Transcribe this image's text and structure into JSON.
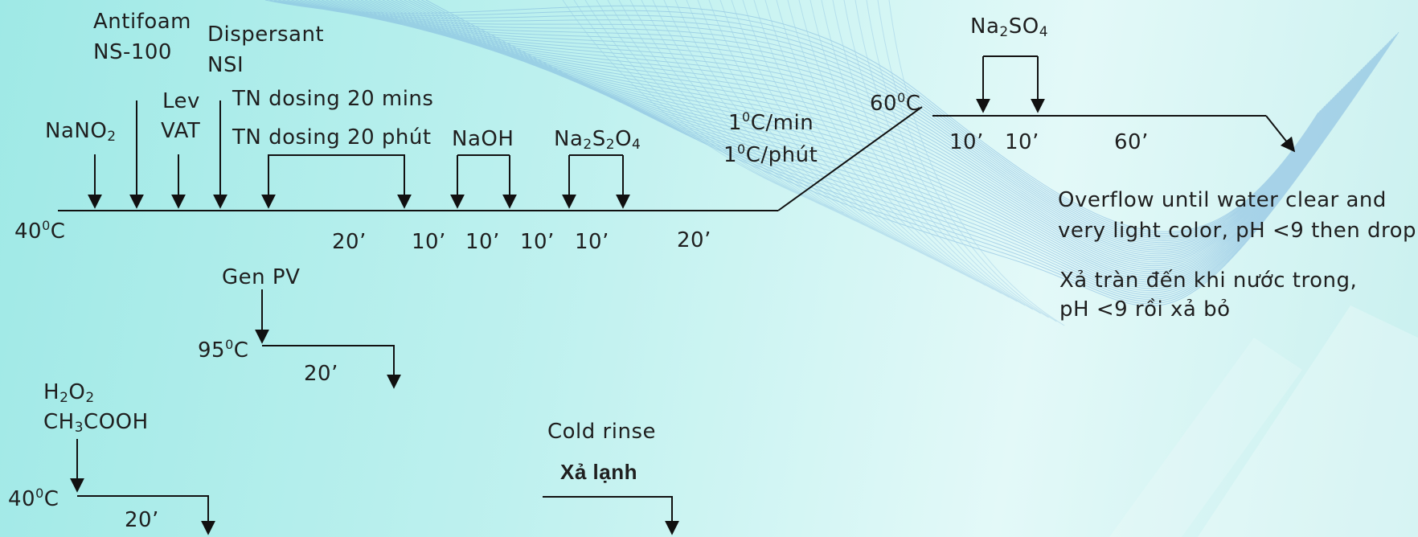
{
  "labels": {
    "antifoam": "Antifoam",
    "ns100": "NS-100",
    "dispersant": "Dispersant",
    "nsi": "NSI",
    "nano2_base": "NaNO",
    "nano2_sub": "2",
    "lev": "Lev",
    "vat": "VAT",
    "tn_dosing_en": "TN dosing 20 mins",
    "tn_dosing_vi": "TN dosing 20 phút",
    "naoh": "NaOH",
    "na2s2o4_a": "Na",
    "na2s2o4_s1": "2",
    "na2s2o4_b": "S",
    "na2s2o4_s2": "2",
    "na2s2o4_c": "O",
    "na2s2o4_s3": "4",
    "rate_en_num": "1",
    "rate_en_sup": "0",
    "rate_en_unit": "C/min",
    "rate_vi_num": "1",
    "rate_vi_sup": "0",
    "rate_vi_unit": "C/phút",
    "temp_60_num": "60",
    "temp_60_sup": "0",
    "temp_60_unit": "C",
    "na2so4_a": "Na",
    "na2so4_s1": "2",
    "na2so4_b": "SO",
    "na2so4_s2": "4",
    "temp_40_num": "40",
    "temp_40_sup": "0",
    "temp_40_unit": "C",
    "gen_pv": "Gen PV",
    "temp_95_num": "95",
    "temp_95_sup": "0",
    "temp_95_unit": "C",
    "h2o2_a": "H",
    "h2o2_s1": "2",
    "h2o2_b": "O",
    "h2o2_s2": "2",
    "ch3cooh_a": "CH",
    "ch3cooh_s": "3",
    "ch3cooh_b": "COOH",
    "temp_40b_num": "40",
    "temp_40b_sup": "0",
    "temp_40b_unit": "C",
    "cold_rinse": "Cold rinse",
    "xa_lanh": "Xả lạnh",
    "overflow_en_1": "Overflow until water clear and",
    "overflow_en_2": "very light color, pH <9 then drop",
    "overflow_vi_1": "Xả tràn đến khi nước trong,",
    "overflow_vi_2": "pH <9 rồi xả bỏ"
  },
  "durations": {
    "d_20a": "20’",
    "d_10a": "10’",
    "d_10b": "10’",
    "d_10c": "10’",
    "d_10d": "10’",
    "d_20b": "20’",
    "d_10e": "10’",
    "d_10f": "10’",
    "d_60": "60’",
    "d_20pv": "20’",
    "d_20h2o2": "20’"
  },
  "colors": {
    "line": "#111111",
    "text": "#1f1f1f",
    "mesh": "#7fb6de"
  }
}
